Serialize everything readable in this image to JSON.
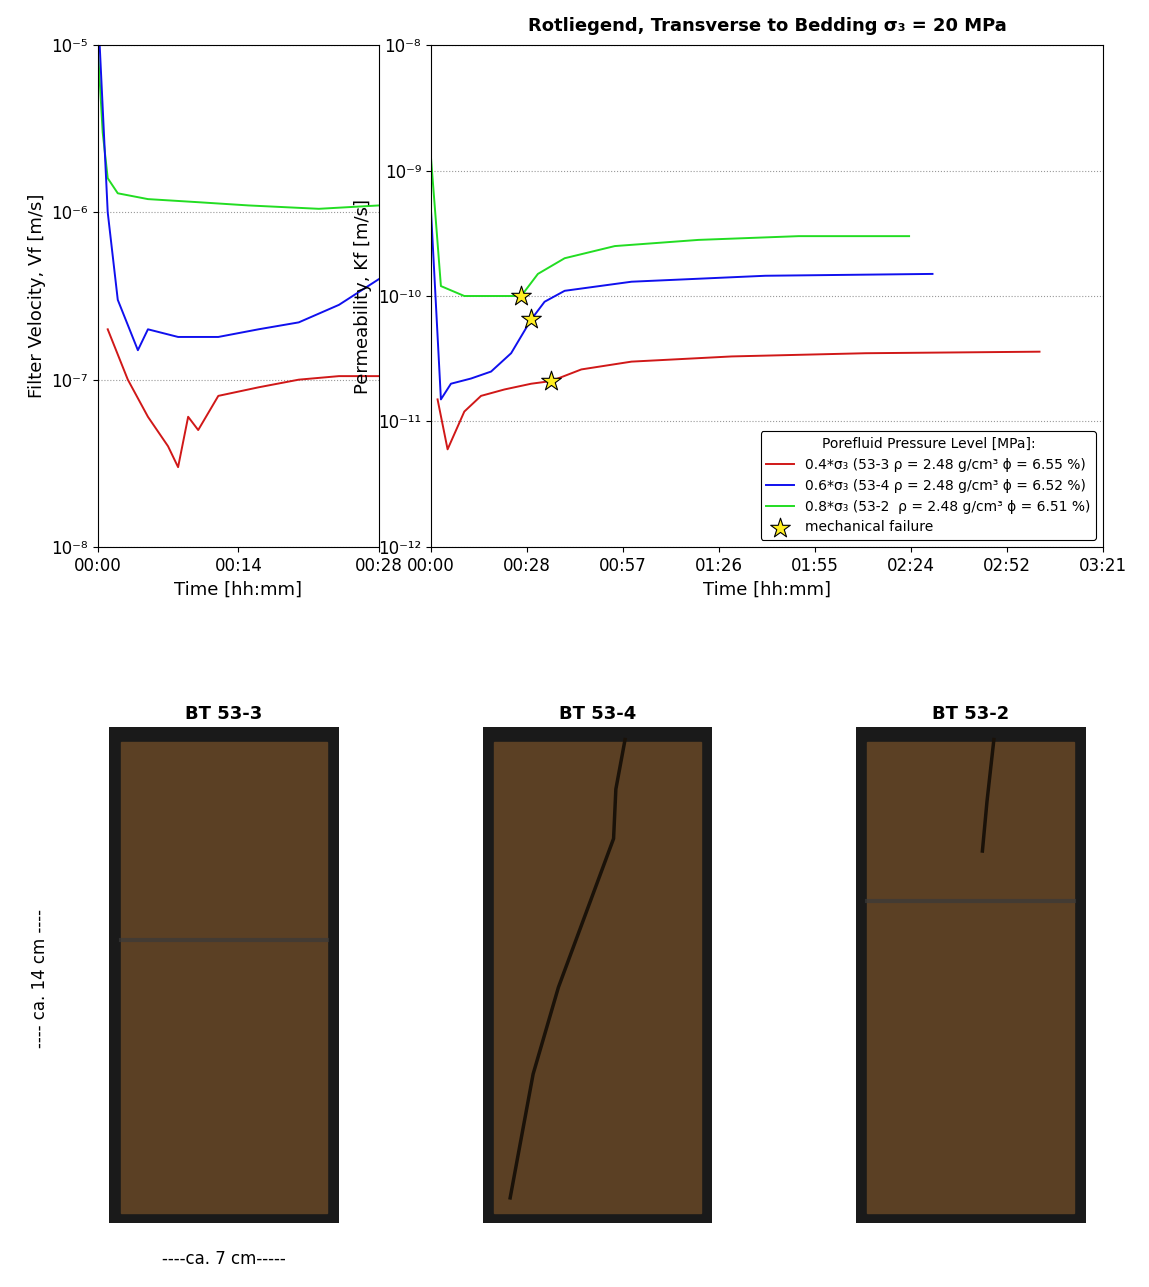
{
  "chart_data": [
    {
      "type": "line",
      "log": "y",
      "grid": true,
      "x_label": "Time [hh:mm]",
      "y_label": "Filter Velocity, Vf [m/s]",
      "xlim": [
        0,
        28
      ],
      "xticks": [
        {
          "value": 0,
          "label": "00:00"
        },
        {
          "value": 14,
          "label": "00:14"
        },
        {
          "value": 28,
          "label": "00:28"
        }
      ],
      "ylim": [
        1e-08,
        1e-05
      ],
      "yticks": [
        {
          "value": 1e-08,
          "label": "10⁻⁸"
        },
        {
          "value": 1e-07,
          "label": "10⁻⁷"
        },
        {
          "value": 1e-06,
          "label": "10⁻⁶"
        },
        {
          "value": 1e-05,
          "label": "10⁻⁵"
        }
      ],
      "series": [
        {
          "color": "#22dd22",
          "line_style": "solid",
          "x": [
            0,
            0.5,
            1,
            2,
            5,
            10,
            15,
            22,
            28
          ],
          "values": [
            1e-05,
            3e-06,
            1.6e-06,
            1.3e-06,
            1.2e-06,
            1.15e-06,
            1.1e-06,
            1.05e-06,
            1.1e-06
          ]
        },
        {
          "color": "#1010ee",
          "line_style": "solid",
          "x": [
            0.2,
            1,
            2,
            4,
            5,
            8,
            12,
            16,
            20,
            24,
            28
          ],
          "values": [
            1e-05,
            1e-06,
            3e-07,
            1.5e-07,
            2e-07,
            1.8e-07,
            1.8e-07,
            2e-07,
            2.2e-07,
            2.8e-07,
            4e-07
          ]
        },
        {
          "color": "#d01818",
          "line_style": "solid",
          "x": [
            1,
            3,
            5,
            7,
            8,
            9,
            10,
            12,
            16,
            20,
            24,
            28
          ],
          "values": [
            2e-07,
            1e-07,
            6e-08,
            4e-08,
            3e-08,
            6e-08,
            5e-08,
            8e-08,
            9e-08,
            1e-07,
            1.05e-07,
            1.05e-07
          ]
        }
      ]
    },
    {
      "type": "line",
      "log": "y",
      "grid": true,
      "title": "Rotliegend, Transverse to Bedding σ₃ = 20 MPa",
      "x_label": "Time [hh:mm]",
      "y_label": "Permeability, Kf [m/s]",
      "xlim": [
        0,
        201
      ],
      "xticks": [
        {
          "value": 0,
          "label": "00:00"
        },
        {
          "value": 28.71,
          "label": "00:28"
        },
        {
          "value": 57.43,
          "label": "00:57"
        },
        {
          "value": 86.14,
          "label": "01:26"
        },
        {
          "value": 114.86,
          "label": "01:55"
        },
        {
          "value": 143.57,
          "label": "02:24"
        },
        {
          "value": 172.29,
          "label": "02:52"
        },
        {
          "value": 201,
          "label": "03:21"
        }
      ],
      "ylim": [
        1e-12,
        1e-08
      ],
      "yticks": [
        {
          "value": 1e-12,
          "label": "10⁻¹²"
        },
        {
          "value": 1e-11,
          "label": "10⁻¹¹"
        },
        {
          "value": 1e-10,
          "label": "10⁻¹⁰"
        },
        {
          "value": 1e-09,
          "label": "10⁻⁹"
        },
        {
          "value": 1e-08,
          "label": "10⁻⁸"
        }
      ],
      "legend": "lower right",
      "legend_title": "Porefluid Pressure Level [MPa]:",
      "series": [
        {
          "name": "0.4*σ₃ (53-3 ρ = 2.48 g/cm³ ϕ = 6.55 %)",
          "color": "#d01818",
          "line_style": "solid",
          "x": [
            2,
            5,
            10,
            15,
            22,
            30,
            36,
            45,
            60,
            90,
            130,
            182
          ],
          "values": [
            1.5e-11,
            6e-12,
            1.2e-11,
            1.6e-11,
            1.8e-11,
            2e-11,
            2.1e-11,
            2.6e-11,
            3e-11,
            3.3e-11,
            3.5e-11,
            3.6e-11
          ]
        },
        {
          "name": "0.6*σ₃ (53-4 ρ = 2.48 g/cm³ ϕ = 6.52 %)",
          "color": "#1010ee",
          "line_style": "solid",
          "x": [
            0,
            3,
            6,
            12,
            18,
            24,
            30,
            34,
            40,
            60,
            100,
            150
          ],
          "values": [
            5e-10,
            1.5e-11,
            2e-11,
            2.2e-11,
            2.5e-11,
            3.5e-11,
            6.5e-11,
            9e-11,
            1.1e-10,
            1.3e-10,
            1.45e-10,
            1.5e-10
          ]
        },
        {
          "name": "0.8*σ₃ (53-2  ρ = 2.48 g/cm³ ϕ = 6.51 %)",
          "color": "#22dd22",
          "line_style": "solid",
          "x": [
            0,
            3,
            10,
            20,
            27,
            32,
            40,
            55,
            80,
            110,
            143
          ],
          "values": [
            1.3e-09,
            1.2e-10,
            1e-10,
            1e-10,
            1e-10,
            1.5e-10,
            2e-10,
            2.5e-10,
            2.8e-10,
            3e-10,
            3e-10
          ]
        },
        {
          "name": "mechanical failure",
          "type": "scatter",
          "marker": "star",
          "color": "#ffee22",
          "x": [
            27,
            30,
            36
          ],
          "values": [
            1e-10,
            6.5e-11,
            2.1e-11
          ]
        }
      ]
    }
  ],
  "samples": {
    "items": [
      {
        "title": "BT 53-3"
      },
      {
        "title": "BT 53-4"
      },
      {
        "title": "BT 53-2"
      }
    ],
    "height_label": "---- ca. 14 cm ----",
    "width_label": "----ca. 7 cm-----"
  }
}
